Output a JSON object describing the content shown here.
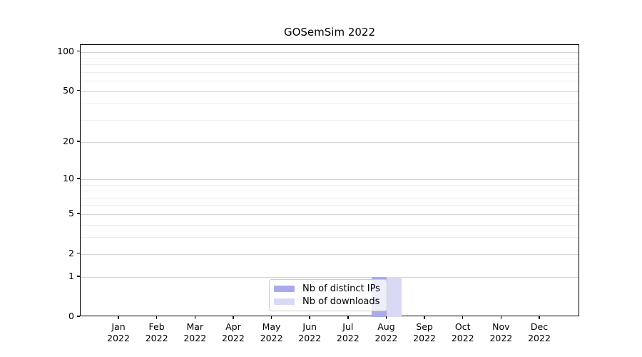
{
  "chart_data": {
    "type": "bar",
    "title": "GOSemSim 2022",
    "scale": "log1p",
    "grid": "on",
    "legend_position": "bottom-center-inside",
    "categories": [
      {
        "month": "Jan",
        "year": "2022"
      },
      {
        "month": "Feb",
        "year": "2022"
      },
      {
        "month": "Mar",
        "year": "2022"
      },
      {
        "month": "Apr",
        "year": "2022"
      },
      {
        "month": "May",
        "year": "2022"
      },
      {
        "month": "Jun",
        "year": "2022"
      },
      {
        "month": "Jul",
        "year": "2022"
      },
      {
        "month": "Aug",
        "year": "2022"
      },
      {
        "month": "Sep",
        "year": "2022"
      },
      {
        "month": "Oct",
        "year": "2022"
      },
      {
        "month": "Nov",
        "year": "2022"
      },
      {
        "month": "Dec",
        "year": "2022"
      }
    ],
    "series": [
      {
        "name": "Nb of distinct IPs",
        "color": "#aaaaea",
        "values": [
          0,
          0,
          0,
          0,
          0,
          0,
          0,
          1,
          0,
          0,
          0,
          0
        ]
      },
      {
        "name": "Nb of downloads",
        "color": "#d9d9f6",
        "values": [
          0,
          0,
          0,
          0,
          0,
          0,
          0,
          1,
          0,
          0,
          0,
          0
        ]
      }
    ],
    "yticks": [
      0,
      1,
      2,
      5,
      10,
      20,
      50,
      100
    ],
    "minor_gridlines": [
      3,
      4,
      6,
      7,
      8,
      9,
      30,
      40,
      60,
      70,
      80,
      90
    ],
    "ylim": [
      0,
      113
    ],
    "colors": {
      "major_grid": "#d4d4d4",
      "minor_grid": "#ededed",
      "axis": "#000000",
      "background": "#ffffff",
      "text": "#000000"
    }
  }
}
